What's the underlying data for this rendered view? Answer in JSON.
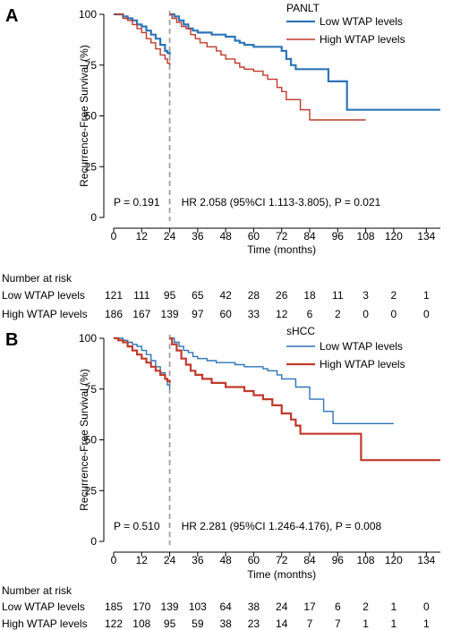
{
  "chart_data": [
    {
      "panel": "A",
      "type": "line",
      "subtitle": "PANLT",
      "xlabel": "Time (months)",
      "ylabel": "Recurrence-Free Survival (%)",
      "xlim": [
        0,
        140
      ],
      "ylim": [
        0,
        100
      ],
      "xticks": [
        0,
        12,
        24,
        36,
        48,
        60,
        72,
        84,
        96,
        108,
        120,
        134
      ],
      "yticks": [
        0,
        25,
        50,
        75,
        100
      ],
      "landmark": 24,
      "p_left": "P = 0.191",
      "p_right": "HR 2.058 (95%CI 1.113-3.805), P = 0.021",
      "series": [
        {
          "name": "Low WTAP levels",
          "color": "#2e75b6",
          "width": 2.2,
          "before": [
            [
              0,
              100
            ],
            [
              2,
              100
            ],
            [
              4,
              99
            ],
            [
              6,
              98
            ],
            [
              8,
              97
            ],
            [
              10,
              95
            ],
            [
              12,
              94
            ],
            [
              14,
              92
            ],
            [
              16,
              90
            ],
            [
              18,
              88
            ],
            [
              20,
              85
            ],
            [
              22,
              82
            ],
            [
              23,
              81
            ],
            [
              24,
              80
            ]
          ],
          "after": [
            [
              24,
              100
            ],
            [
              26,
              99
            ],
            [
              28,
              97
            ],
            [
              30,
              95
            ],
            [
              32,
              93
            ],
            [
              34,
              92
            ],
            [
              36,
              91
            ],
            [
              42,
              90
            ],
            [
              48,
              89
            ],
            [
              52,
              87
            ],
            [
              54,
              86
            ],
            [
              56,
              85
            ],
            [
              60,
              84
            ],
            [
              66,
              84
            ],
            [
              72,
              82
            ],
            [
              74,
              78
            ],
            [
              76,
              75
            ],
            [
              78,
              73
            ],
            [
              84,
              73
            ],
            [
              90,
              73
            ],
            [
              92,
              67
            ],
            [
              98,
              67
            ],
            [
              100,
              53
            ],
            [
              105,
              53
            ],
            [
              140,
              53
            ]
          ]
        },
        {
          "name": "High WTAP levels",
          "color": "#c0392b",
          "width": 1.4,
          "before": [
            [
              0,
              100
            ],
            [
              2,
              100
            ],
            [
              4,
              98
            ],
            [
              6,
              97
            ],
            [
              8,
              95
            ],
            [
              10,
              93
            ],
            [
              12,
              91
            ],
            [
              14,
              88
            ],
            [
              16,
              86
            ],
            [
              18,
              83
            ],
            [
              20,
              80
            ],
            [
              22,
              78
            ],
            [
              23,
              76
            ],
            [
              24,
              75
            ]
          ],
          "after": [
            [
              24,
              100
            ],
            [
              25,
              98
            ],
            [
              27,
              96
            ],
            [
              29,
              94
            ],
            [
              31,
              93
            ],
            [
              33,
              90
            ],
            [
              35,
              88
            ],
            [
              37,
              86
            ],
            [
              40,
              84
            ],
            [
              44,
              82
            ],
            [
              46,
              80
            ],
            [
              48,
              78
            ],
            [
              52,
              76
            ],
            [
              54,
              74
            ],
            [
              56,
              73
            ],
            [
              60,
              72
            ],
            [
              64,
              70
            ],
            [
              66,
              68
            ],
            [
              70,
              64
            ],
            [
              72,
              62
            ],
            [
              74,
              58
            ],
            [
              78,
              58
            ],
            [
              80,
              53
            ],
            [
              84,
              48
            ],
            [
              90,
              48
            ],
            [
              108,
              48
            ]
          ]
        }
      ],
      "risk_table": {
        "title": "Number at risk",
        "rows": [
          {
            "label": "Low WTAP levels",
            "values": [
              "121",
              "111",
              "95",
              "65",
              "42",
              "28",
              "26",
              "18",
              "11",
              "3",
              "2",
              "1"
            ]
          },
          {
            "label": "High WTAP levels",
            "values": [
              "186",
              "167",
              "139",
              "97",
              "60",
              "33",
              "12",
              "6",
              "2",
              "0",
              "0",
              "0"
            ]
          }
        ]
      }
    },
    {
      "panel": "B",
      "type": "line",
      "subtitle": "sHCC",
      "xlabel": "Time (months)",
      "ylabel": "Recurrence-Free Survival (%)",
      "xlim": [
        0,
        140
      ],
      "ylim": [
        0,
        100
      ],
      "xticks": [
        0,
        12,
        24,
        36,
        48,
        60,
        72,
        84,
        96,
        108,
        120,
        134
      ],
      "yticks": [
        0,
        25,
        50,
        75,
        100
      ],
      "landmark": 24,
      "p_left": "P = 0.510",
      "p_right": "HR 2.281 (95%CI 1.246-4.176), P = 0.008",
      "series": [
        {
          "name": "Low WTAP levels",
          "color": "#2e75b6",
          "width": 1.4,
          "before": [
            [
              0,
              100
            ],
            [
              2,
              100
            ],
            [
              4,
              99
            ],
            [
              6,
              98
            ],
            [
              8,
              97
            ],
            [
              10,
              96
            ],
            [
              12,
              94
            ],
            [
              14,
              92
            ],
            [
              16,
              89
            ],
            [
              18,
              86
            ],
            [
              20,
              83
            ],
            [
              22,
              80
            ],
            [
              23,
              77
            ],
            [
              24,
              75
            ]
          ],
          "after": [
            [
              24,
              100
            ],
            [
              26,
              98
            ],
            [
              28,
              96
            ],
            [
              30,
              94
            ],
            [
              32,
              93
            ],
            [
              34,
              91
            ],
            [
              36,
              90
            ],
            [
              40,
              89
            ],
            [
              44,
              88
            ],
            [
              48,
              88
            ],
            [
              52,
              87
            ],
            [
              56,
              86
            ],
            [
              60,
              86
            ],
            [
              64,
              85
            ],
            [
              66,
              84
            ],
            [
              70,
              82
            ],
            [
              72,
              80
            ],
            [
              78,
              76
            ],
            [
              84,
              70
            ],
            [
              90,
              64
            ],
            [
              94,
              58
            ],
            [
              98,
              58
            ],
            [
              108,
              58
            ],
            [
              120,
              58
            ]
          ]
        },
        {
          "name": "High WTAP levels",
          "color": "#c0392b",
          "width": 2.2,
          "before": [
            [
              0,
              100
            ],
            [
              2,
              99
            ],
            [
              4,
              98
            ],
            [
              6,
              96
            ],
            [
              8,
              94
            ],
            [
              10,
              92
            ],
            [
              12,
              90
            ],
            [
              14,
              88
            ],
            [
              16,
              86
            ],
            [
              18,
              84
            ],
            [
              20,
              82
            ],
            [
              22,
              80
            ],
            [
              23,
              79
            ],
            [
              24,
              78
            ]
          ],
          "after": [
            [
              24,
              100
            ],
            [
              25,
              97
            ],
            [
              27,
              94
            ],
            [
              29,
              90
            ],
            [
              31,
              87
            ],
            [
              33,
              84
            ],
            [
              35,
              82
            ],
            [
              38,
              80
            ],
            [
              42,
              78
            ],
            [
              48,
              76
            ],
            [
              56,
              74
            ],
            [
              60,
              72
            ],
            [
              64,
              70
            ],
            [
              68,
              67
            ],
            [
              72,
              63
            ],
            [
              76,
              60
            ],
            [
              78,
              57
            ],
            [
              80,
              53
            ],
            [
              90,
              53
            ],
            [
              104,
              53
            ],
            [
              106,
              40
            ],
            [
              120,
              40
            ],
            [
              140,
              40
            ]
          ]
        }
      ],
      "risk_table": {
        "title": "Number at risk",
        "rows": [
          {
            "label": "Low WTAP levels",
            "values": [
              "185",
              "170",
              "139",
              "103",
              "64",
              "38",
              "24",
              "17",
              "6",
              "2",
              "1",
              "0"
            ]
          },
          {
            "label": "High WTAP levels",
            "values": [
              "122",
              "108",
              "95",
              "59",
              "38",
              "23",
              "14",
              "7",
              "7",
              "1",
              "1",
              "1"
            ]
          }
        ]
      }
    }
  ]
}
